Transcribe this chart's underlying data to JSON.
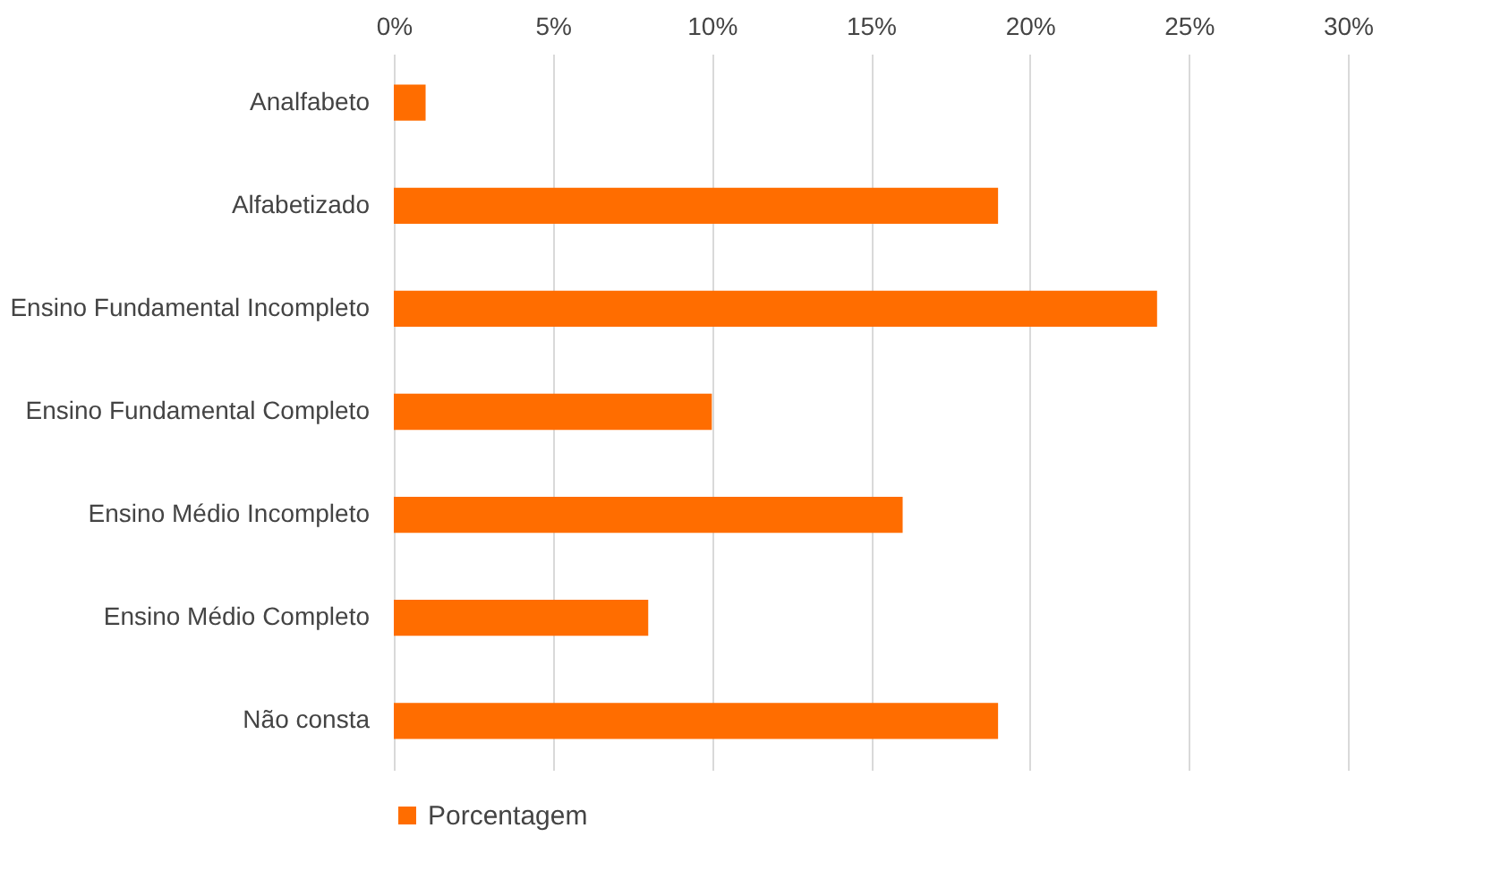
{
  "chart_data": {
    "type": "bar",
    "orientation": "horizontal",
    "categories": [
      "Analfabeto",
      "Alfabetizado",
      "Ensino Fundamental Incompleto",
      "Ensino Fundamental Completo",
      "Ensino Médio Incompleto",
      "Ensino Médio Completo",
      "Não consta"
    ],
    "series": [
      {
        "name": "Porcentagem",
        "color": "#ff6d00",
        "values": [
          1,
          19,
          24,
          10,
          16,
          8,
          19
        ]
      }
    ],
    "xlim": [
      0,
      30
    ],
    "xticks": [
      {
        "value": 0,
        "label": "0%"
      },
      {
        "value": 5,
        "label": "5%"
      },
      {
        "value": 10,
        "label": "10%"
      },
      {
        "value": 15,
        "label": "15%"
      },
      {
        "value": 20,
        "label": "20%"
      },
      {
        "value": 25,
        "label": "25%"
      },
      {
        "value": 30,
        "label": "30%"
      }
    ],
    "grid": "x",
    "legend": "bottom"
  }
}
